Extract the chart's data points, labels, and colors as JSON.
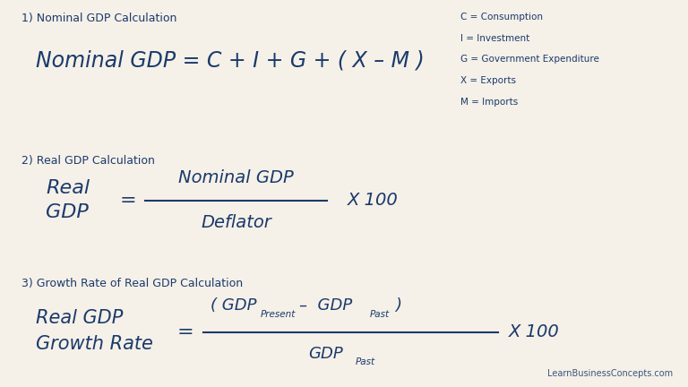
{
  "bg_color": "#f5f0e8",
  "text_color": "#1a3a6b",
  "title1": "1) Nominal GDP Calculation",
  "title2": "2) Real GDP Calculation",
  "title3": "3) Growth Rate of Real GDP Calculation",
  "legend_lines": [
    "C = Consumption",
    "I = Investment",
    "G = Government Expenditure",
    "X = Exports",
    "M = Imports"
  ],
  "watermark": "LearnBusinessConcepts.com",
  "formula1": "Nominal GDP = C + I + G + ( X – M )",
  "formula2_lhs_line1": "Real",
  "formula2_lhs_line2": "GDP",
  "formula2_numerator": "Nominal GDP",
  "formula2_denominator": "Deflator",
  "formula2_x100": "X 100",
  "formula3_lhs_line1": "Real GDP",
  "formula3_lhs_line2": "Growth Rate",
  "formula3_num_open": "( GDP",
  "formula3_num_present": "Present",
  "formula3_num_middle": "–  GDP",
  "formula3_num_past": "Past",
  "formula3_num_close": ")",
  "formula3_den_gdp": "GDP",
  "formula3_den_past": "Past",
  "formula3_x100": "X 100"
}
